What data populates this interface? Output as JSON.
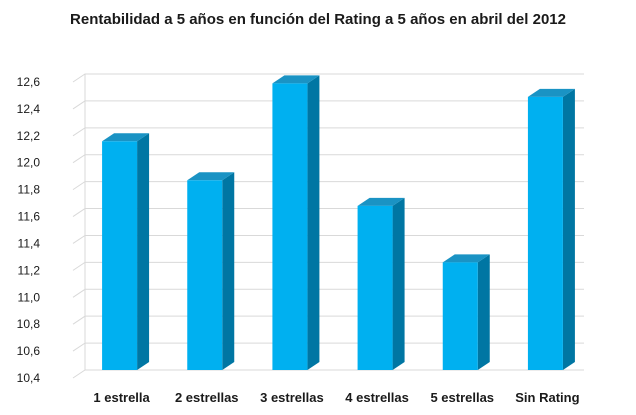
{
  "chart_data": {
    "type": "bar",
    "title": "Rentabilidad a 5 años en función del Rating a 5 años en abril del 2012",
    "categories": [
      "1 estrella",
      "2 estrellas",
      "3 estrellas",
      "4 estrellas",
      "5 estrellas",
      "Sin Rating"
    ],
    "values": [
      12.1,
      11.81,
      12.53,
      11.62,
      11.2,
      12.43
    ],
    "yticks": [
      "10,4",
      "10,6",
      "10,8",
      "11,0",
      "11,2",
      "11,4",
      "11,6",
      "11,8",
      "12,0",
      "12,2",
      "12,4",
      "12,6"
    ],
    "ylim": [
      10.4,
      12.6
    ],
    "grid": true,
    "xlabel": "",
    "ylabel": "",
    "colors": {
      "front": "#00b0f0",
      "side": "#0076a3",
      "top": "#1a93c4",
      "grid": "#d9d9d9"
    }
  }
}
